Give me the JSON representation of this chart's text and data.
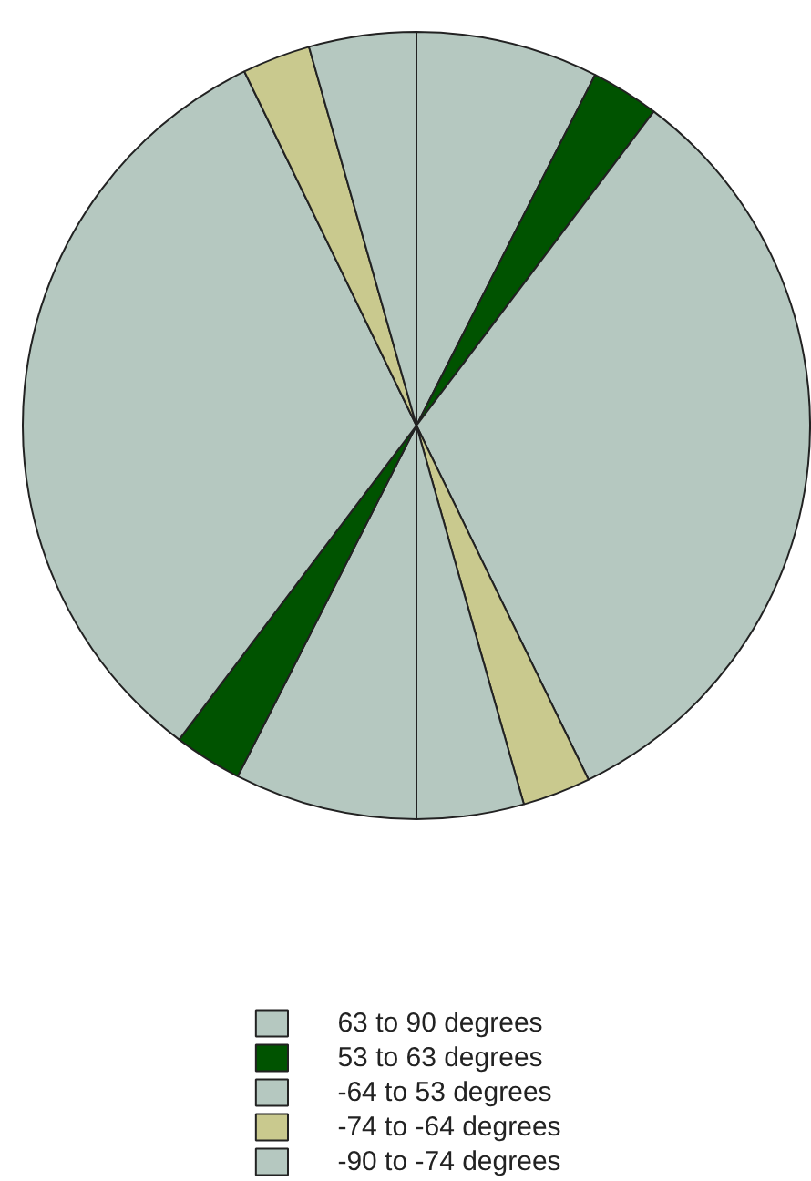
{
  "chart_data": {
    "type": "pie",
    "categories": [
      "63 to 90 degrees",
      "53 to 63 degrees",
      "-64 to 53 degrees",
      "-74 to -64 degrees",
      "-90 to -74 degrees",
      null,
      null,
      null,
      null,
      null
    ],
    "values": [
      7.5,
      2.8,
      32.5,
      2.8,
      4.4,
      7.5,
      2.8,
      32.5,
      2.8,
      4.4
    ],
    "colors": [
      "#b5c8c0",
      "#005300",
      "#b5c8c0",
      "#c9c98e",
      "#b5c8c0",
      "#b5c8c0",
      "#005300",
      "#b5c8c0",
      "#c9c98e",
      "#b5c8c0"
    ],
    "legend": "bottom"
  }
}
